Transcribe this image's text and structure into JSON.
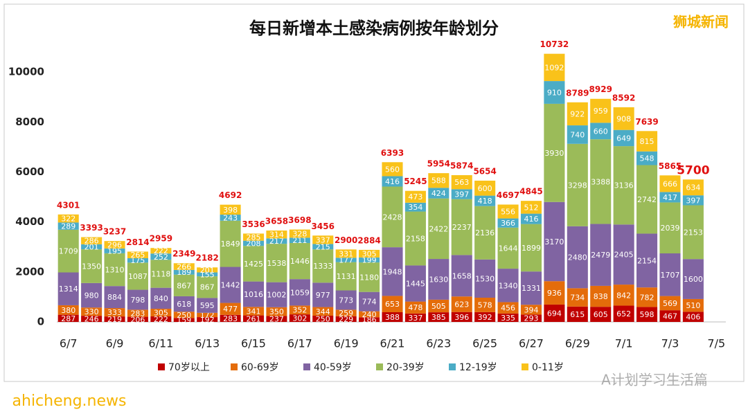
{
  "chart_data": {
    "type": "stacked_bar",
    "title": "每日新增本土感染病例按年龄划分",
    "watermarks": [
      "狮城新闻",
      "A计划学习生活篇",
      "ahicheng.news"
    ],
    "categories": [
      "6/7",
      null,
      "6/9",
      null,
      "6/11",
      null,
      "6/13",
      null,
      "6/15",
      null,
      "6/17",
      null,
      "6/19",
      null,
      "6/21",
      null,
      "6/23",
      null,
      "6/25",
      null,
      "6/27",
      null,
      "6/29",
      null,
      "7/1",
      null,
      "7/3",
      null,
      "7/5"
    ],
    "series": [
      {
        "name": "70岁以上",
        "color": "#c00000",
        "values": [
          287,
          246,
          219,
          206,
          222,
          159,
          192,
          283,
          261,
          237,
          302,
          250,
          229,
          186,
          388,
          337,
          385,
          396,
          392,
          335,
          293,
          694,
          615,
          605,
          652,
          598,
          467,
          406,
          null
        ]
      },
      {
        "name": "60-69岁",
        "color": "#e46c0a",
        "values": [
          380,
          330,
          333,
          283,
          305,
          250,
          172,
          477,
          341,
          350,
          352,
          344,
          259,
          240,
          653,
          478,
          505,
          623,
          578,
          456,
          394,
          936,
          734,
          838,
          842,
          782,
          569,
          510,
          null
        ]
      },
      {
        "name": "40-59岁",
        "color": "#8064a2",
        "values": [
          1314,
          980,
          884,
          798,
          840,
          618,
          595,
          1442,
          1016,
          1002,
          1059,
          977,
          773,
          774,
          1948,
          1445,
          1630,
          1658,
          1530,
          1340,
          1331,
          3170,
          2480,
          2479,
          2405,
          2154,
          1707,
          1600,
          null
        ]
      },
      {
        "name": "20-39岁",
        "color": "#9bbb59",
        "values": [
          1709,
          1350,
          1310,
          1087,
          1118,
          867,
          867,
          1849,
          1425,
          1538,
          1446,
          1333,
          1131,
          1180,
          2428,
          2158,
          2422,
          2237,
          2136,
          1644,
          1899,
          3930,
          3298,
          3388,
          3136,
          2742,
          2039,
          2153,
          null
        ]
      },
      {
        "name": "12-19岁",
        "color": "#4bacc6",
        "values": [
          289,
          201,
          195,
          175,
          252,
          189,
          155,
          243,
          208,
          217,
          211,
          215,
          177,
          199,
          416,
          354,
          424,
          397,
          418,
          366,
          416,
          910,
          740,
          660,
          649,
          548,
          417,
          397,
          null
        ]
      },
      {
        "name": "0-11岁",
        "color": "#f9c21a",
        "values": [
          322,
          286,
          296,
          265,
          222,
          266,
          201,
          398,
          285,
          314,
          328,
          337,
          331,
          305,
          560,
          473,
          588,
          563,
          600,
          556,
          512,
          1092,
          922,
          959,
          908,
          815,
          666,
          634,
          null
        ]
      }
    ],
    "totals": [
      4301,
      3393,
      3237,
      2814,
      2959,
      2349,
      2182,
      4692,
      3536,
      3658,
      3698,
      3456,
      2900,
      2884,
      6393,
      5245,
      5954,
      5874,
      5654,
      4697,
      4845,
      10732,
      8789,
      8929,
      8592,
      7639,
      5865,
      5700,
      null
    ],
    "ylim": [
      0,
      11000
    ],
    "yticks": [
      0,
      2000,
      4000,
      6000,
      8000,
      10000
    ],
    "grid": false,
    "legend": "bottom"
  }
}
